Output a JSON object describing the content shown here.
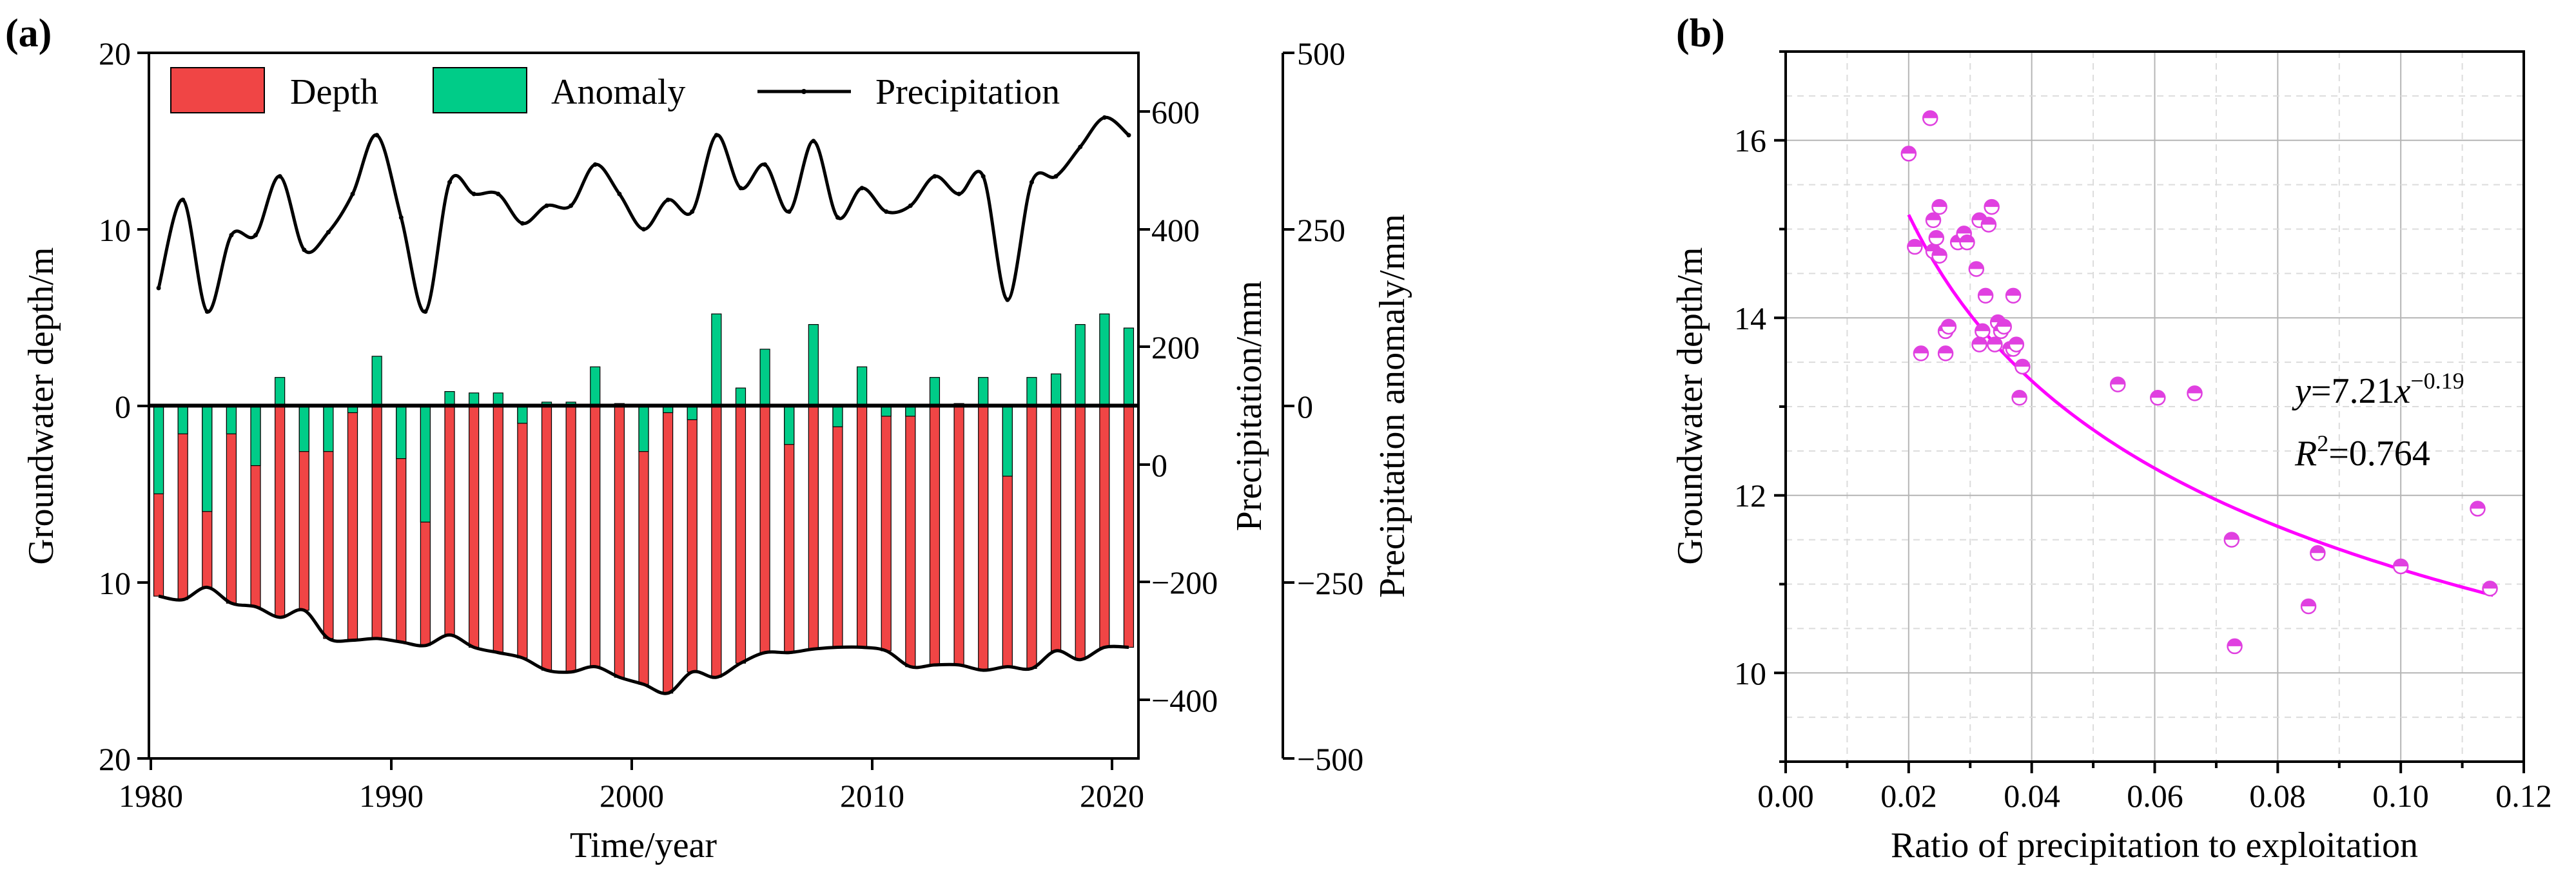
{
  "chart_data": [
    {
      "panel_label": "(a)",
      "type": "bar+line",
      "xlabel": "Time/year",
      "ylabel_left": "Groundwater depth/m",
      "ylabel_right1": "Precipitation/mm",
      "ylabel_right2": "Precipitation anomaly/mm",
      "x_ticks": [
        "1980",
        "1990",
        "2000",
        "2010",
        "2020"
      ],
      "yleft_ticks": [
        "20",
        "10",
        "0",
        "10",
        "20"
      ],
      "yright1_ticks": [
        "600",
        "400",
        "200",
        "0",
        "−200",
        "−400"
      ],
      "yright2_ticks": [
        "500",
        "250",
        "0",
        "−250",
        "−500"
      ],
      "xlim": [
        1979.6,
        2020.4
      ],
      "yleft_lim": [
        -20,
        20
      ],
      "yright1_lim": [
        -500,
        700
      ],
      "yright2_lim": [
        -500,
        500
      ],
      "legend": [
        "Depth",
        "Anomaly",
        "Precipitation"
      ],
      "colors": {
        "depth": "#f04545",
        "anomaly": "#00cc88",
        "precip": "#000000"
      },
      "years": [
        1980,
        1981,
        1982,
        1983,
        1984,
        1985,
        1986,
        1987,
        1988,
        1989,
        1990,
        1991,
        1992,
        1993,
        1994,
        1995,
        1996,
        1997,
        1998,
        1999,
        2000,
        2001,
        2002,
        2003,
        2004,
        2005,
        2006,
        2007,
        2008,
        2009,
        2010,
        2011,
        2012,
        2013,
        2014,
        2015,
        2016,
        2017,
        2018,
        2019,
        2020
      ],
      "depth_m": [
        10.8,
        11.0,
        10.3,
        11.2,
        11.4,
        12.0,
        11.6,
        13.2,
        13.3,
        13.2,
        13.4,
        13.6,
        13.0,
        13.7,
        14.0,
        14.3,
        15.0,
        15.1,
        14.8,
        15.4,
        15.8,
        16.3,
        15.1,
        15.4,
        14.6,
        14.0,
        14.0,
        13.8,
        13.7,
        13.7,
        13.9,
        14.8,
        14.7,
        14.7,
        15.0,
        14.8,
        14.9,
        13.9,
        14.4,
        13.7,
        13.7
      ],
      "anomaly_mm": [
        -125,
        -40,
        -150,
        -40,
        -85,
        40,
        -65,
        -65,
        -10,
        70,
        -75,
        -165,
        20,
        18,
        18,
        -25,
        5,
        5,
        55,
        3,
        -65,
        -10,
        -20,
        130,
        25,
        80,
        -55,
        115,
        -30,
        55,
        -15,
        -15,
        40,
        3,
        40,
        -100,
        40,
        45,
        115,
        130,
        110
      ],
      "precip_mm": [
        300,
        450,
        260,
        390,
        390,
        490,
        365,
        395,
        460,
        560,
        420,
        260,
        480,
        460,
        460,
        410,
        440,
        440,
        510,
        460,
        400,
        450,
        430,
        560,
        470,
        510,
        430,
        550,
        420,
        470,
        430,
        440,
        490,
        460,
        490,
        280,
        480,
        490,
        540,
        590,
        560
      ]
    },
    {
      "panel_label": "(b)",
      "type": "scatter",
      "xlabel": "Ratio of precipitation to exploitation",
      "ylabel": "Groundwater depth/m",
      "xlim": [
        0.0,
        0.12
      ],
      "ylim": [
        9.0,
        17.0
      ],
      "x_ticks": [
        "0.00",
        "0.02",
        "0.04",
        "0.06",
        "0.08",
        "0.10",
        "0.12"
      ],
      "y_ticks": [
        "10",
        "12",
        "14",
        "16"
      ],
      "fit_label_y": "y",
      "fit_label_eq": "=7.21",
      "fit_label_x": "x",
      "fit_label_exp": "−0.19",
      "r2_label_R": "R",
      "r2_label_sup": "2",
      "r2_label_value": "=0.764",
      "fit": {
        "a": 7.21,
        "b": -0.19,
        "x_range": [
          0.02,
          0.115
        ],
        "r2": 0.764
      },
      "colors": {
        "points": "#e040e0",
        "fit": "#ff00ff"
      },
      "points": [
        [
          0.02,
          15.85
        ],
        [
          0.021,
          14.8
        ],
        [
          0.022,
          13.6
        ],
        [
          0.0235,
          16.25
        ],
        [
          0.024,
          15.1
        ],
        [
          0.024,
          14.75
        ],
        [
          0.0245,
          14.9
        ],
        [
          0.025,
          15.25
        ],
        [
          0.025,
          14.7
        ],
        [
          0.026,
          13.85
        ],
        [
          0.0265,
          13.9
        ],
        [
          0.026,
          13.6
        ],
        [
          0.028,
          14.85
        ],
        [
          0.029,
          14.95
        ],
        [
          0.0295,
          14.85
        ],
        [
          0.031,
          14.55
        ],
        [
          0.0315,
          15.1
        ],
        [
          0.032,
          13.85
        ],
        [
          0.0315,
          13.7
        ],
        [
          0.0325,
          14.25
        ],
        [
          0.033,
          15.05
        ],
        [
          0.0335,
          15.25
        ],
        [
          0.034,
          13.7
        ],
        [
          0.0345,
          13.95
        ],
        [
          0.035,
          13.85
        ],
        [
          0.0355,
          13.9
        ],
        [
          0.0365,
          13.65
        ],
        [
          0.037,
          14.25
        ],
        [
          0.037,
          13.65
        ],
        [
          0.038,
          13.1
        ],
        [
          0.0385,
          13.45
        ],
        [
          0.0375,
          13.7
        ],
        [
          0.054,
          13.25
        ],
        [
          0.0605,
          13.1
        ],
        [
          0.0665,
          13.15
        ],
        [
          0.0725,
          11.5
        ],
        [
          0.073,
          10.3
        ],
        [
          0.085,
          10.75
        ],
        [
          0.0865,
          11.35
        ],
        [
          0.1,
          11.2
        ],
        [
          0.1125,
          11.85
        ],
        [
          0.1145,
          10.95
        ]
      ]
    }
  ]
}
